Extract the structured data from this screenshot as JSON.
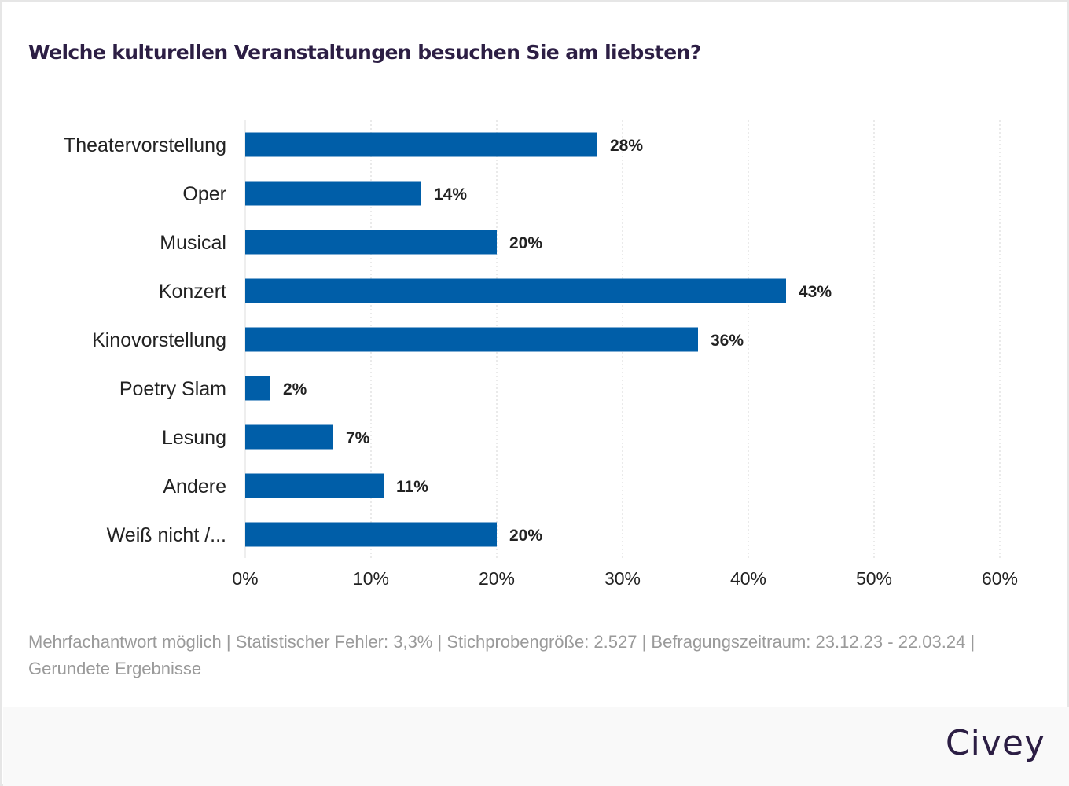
{
  "chart_data": {
    "type": "bar",
    "orientation": "horizontal",
    "title": "Welche kulturellen Veranstaltungen besuchen Sie am liebsten?",
    "categories": [
      "Theatervorstellung",
      "Oper",
      "Musical",
      "Konzert",
      "Kinovorstellung",
      "Poetry Slam",
      "Lesung",
      "Andere",
      "Weiß nicht /..."
    ],
    "values": [
      28,
      14,
      20,
      43,
      36,
      2,
      7,
      11,
      20
    ],
    "value_labels": [
      "28%",
      "14%",
      "20%",
      "43%",
      "36%",
      "2%",
      "7%",
      "11%",
      "20%"
    ],
    "xlim": [
      0,
      60
    ],
    "xticks": [
      0,
      10,
      20,
      30,
      40,
      50,
      60
    ],
    "xtick_labels": [
      "0%",
      "10%",
      "20%",
      "30%",
      "40%",
      "50%",
      "60%"
    ],
    "xlabel": "",
    "ylabel": "",
    "grid": true,
    "bar_color": "#005ea8"
  },
  "note": "Mehrfachantwort möglich | Statistischer Fehler: 3,3% | Stichprobengröße: 2.527 | Befragungszeitraum: 23.12.23 - 22.03.24 | Gerundete Ergebnisse",
  "logo": "Civey"
}
